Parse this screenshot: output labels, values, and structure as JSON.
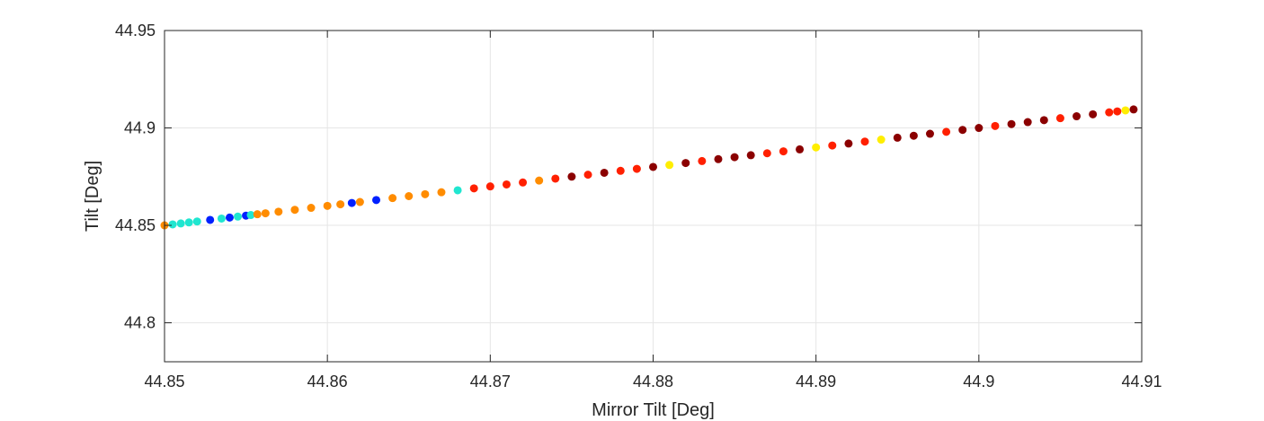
{
  "chart_data": {
    "type": "scatter",
    "title": "",
    "xlabel": "Mirror Tilt [Deg]",
    "ylabel": "Tilt [Deg]",
    "xlim": [
      44.85,
      44.91
    ],
    "ylim": [
      44.78,
      44.95
    ],
    "xticks": [
      44.85,
      44.86,
      44.87,
      44.88,
      44.89,
      44.9,
      44.91
    ],
    "xtick_labels": [
      "44.85",
      "44.86",
      "44.87",
      "44.88",
      "44.89",
      "44.9",
      "44.91"
    ],
    "yticks": [
      44.8,
      44.85,
      44.9,
      44.95
    ],
    "ytick_labels": [
      "44.8",
      "44.85",
      "44.9",
      "44.95"
    ],
    "grid": true,
    "legend": "none",
    "relationship": "y = x",
    "colormap": "jet",
    "colors": {
      "axis": "#262626",
      "grid": "#e6e6e6",
      "dark_red": "#8b0000",
      "red": "#ff2000",
      "orange": "#ff8c00",
      "yellow": "#ffee00",
      "cyan": "#20e6d0",
      "blue": "#0020ff"
    },
    "series": [
      {
        "points": [
          [
            44.85,
            44.85,
            "orange"
          ],
          [
            44.8505,
            44.8505,
            "cyan"
          ],
          [
            44.851,
            44.851,
            "cyan"
          ],
          [
            44.8515,
            44.8515,
            "cyan"
          ],
          [
            44.852,
            44.852,
            "cyan"
          ],
          [
            44.8528,
            44.8528,
            "blue"
          ],
          [
            44.8535,
            44.8535,
            "cyan"
          ],
          [
            44.854,
            44.854,
            "blue"
          ],
          [
            44.8545,
            44.8545,
            "cyan"
          ],
          [
            44.855,
            44.855,
            "blue"
          ],
          [
            44.8553,
            44.8553,
            "cyan"
          ],
          [
            44.8557,
            44.8557,
            "orange"
          ],
          [
            44.8562,
            44.8562,
            "orange"
          ],
          [
            44.857,
            44.857,
            "orange"
          ],
          [
            44.858,
            44.858,
            "orange"
          ],
          [
            44.859,
            44.859,
            "orange"
          ],
          [
            44.86,
            44.86,
            "orange"
          ],
          [
            44.8608,
            44.8608,
            "orange"
          ],
          [
            44.8615,
            44.8615,
            "blue"
          ],
          [
            44.862,
            44.862,
            "orange"
          ],
          [
            44.863,
            44.863,
            "blue"
          ],
          [
            44.864,
            44.864,
            "orange"
          ],
          [
            44.865,
            44.865,
            "orange"
          ],
          [
            44.866,
            44.866,
            "orange"
          ],
          [
            44.867,
            44.867,
            "orange"
          ],
          [
            44.868,
            44.868,
            "cyan"
          ],
          [
            44.869,
            44.869,
            "red"
          ],
          [
            44.87,
            44.87,
            "red"
          ],
          [
            44.871,
            44.871,
            "red"
          ],
          [
            44.872,
            44.872,
            "red"
          ],
          [
            44.873,
            44.873,
            "orange"
          ],
          [
            44.874,
            44.874,
            "red"
          ],
          [
            44.875,
            44.875,
            "dark_red"
          ],
          [
            44.876,
            44.876,
            "red"
          ],
          [
            44.877,
            44.877,
            "dark_red"
          ],
          [
            44.878,
            44.878,
            "red"
          ],
          [
            44.879,
            44.879,
            "red"
          ],
          [
            44.88,
            44.88,
            "dark_red"
          ],
          [
            44.881,
            44.881,
            "yellow"
          ],
          [
            44.882,
            44.882,
            "dark_red"
          ],
          [
            44.883,
            44.883,
            "red"
          ],
          [
            44.884,
            44.884,
            "dark_red"
          ],
          [
            44.885,
            44.885,
            "dark_red"
          ],
          [
            44.886,
            44.886,
            "dark_red"
          ],
          [
            44.887,
            44.887,
            "red"
          ],
          [
            44.888,
            44.888,
            "red"
          ],
          [
            44.889,
            44.889,
            "dark_red"
          ],
          [
            44.89,
            44.89,
            "yellow"
          ],
          [
            44.891,
            44.891,
            "red"
          ],
          [
            44.892,
            44.892,
            "dark_red"
          ],
          [
            44.893,
            44.893,
            "red"
          ],
          [
            44.894,
            44.894,
            "yellow"
          ],
          [
            44.895,
            44.895,
            "dark_red"
          ],
          [
            44.896,
            44.896,
            "dark_red"
          ],
          [
            44.897,
            44.897,
            "dark_red"
          ],
          [
            44.898,
            44.898,
            "red"
          ],
          [
            44.899,
            44.899,
            "dark_red"
          ],
          [
            44.9,
            44.9,
            "dark_red"
          ],
          [
            44.901,
            44.901,
            "red"
          ],
          [
            44.902,
            44.902,
            "dark_red"
          ],
          [
            44.903,
            44.903,
            "dark_red"
          ],
          [
            44.904,
            44.904,
            "dark_red"
          ],
          [
            44.905,
            44.905,
            "red"
          ],
          [
            44.906,
            44.906,
            "dark_red"
          ],
          [
            44.907,
            44.907,
            "dark_red"
          ],
          [
            44.908,
            44.908,
            "red"
          ],
          [
            44.9085,
            44.9085,
            "red"
          ],
          [
            44.909,
            44.909,
            "yellow"
          ],
          [
            44.9095,
            44.9095,
            "dark_red"
          ]
        ]
      }
    ]
  }
}
